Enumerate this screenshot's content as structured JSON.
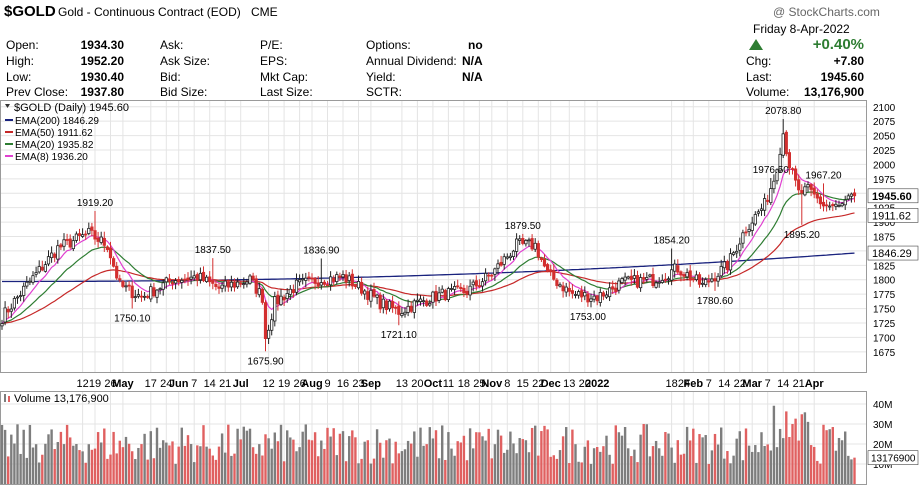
{
  "header": {
    "symbol": "$GOLD",
    "description": "Gold - Continuous Contract (EOD)",
    "exchange": "CME",
    "copyright": "@ StockCharts.com",
    "date": "Friday  8-Apr-2022",
    "change_pct": "+0.40%",
    "quote": {
      "open_label": "Open:",
      "open": "1934.30",
      "high_label": "High:",
      "high": "1952.20",
      "low_label": "Low:",
      "low": "1930.40",
      "prev_label": "Prev Close:",
      "prev": "1937.80",
      "ask_label": "Ask:",
      "ask": "",
      "asksize_label": "Ask Size:",
      "asksize": "",
      "bid_label": "Bid:",
      "bid": "",
      "bidsize_label": "Bid Size:",
      "bidsize": "",
      "pe_label": "P/E:",
      "pe": "",
      "eps_label": "EPS:",
      "eps": "",
      "mktcap_label": "Mkt Cap:",
      "mktcap": "",
      "lastsize_label": "Last Size:",
      "lastsize": "",
      "options_label": "Options:",
      "options": "no",
      "div_label": "Annual Dividend:",
      "div": "N/A",
      "yield_label": "Yield:",
      "yield": "N/A",
      "sctr_label": "SCTR:",
      "sctr": "",
      "chg_label": "Chg:",
      "chg": "+7.80",
      "last_label": "Last:",
      "last": "1945.60",
      "volume_label": "Volume:",
      "volume": "13,176,900"
    }
  },
  "legend": {
    "main": "$GOLD (Daily) 1945.60",
    "emas": [
      {
        "label": "EMA(200) 1846.29",
        "color": "#1a237e"
      },
      {
        "label": "EMA(50) 1911.62",
        "color": "#c62828"
      },
      {
        "label": "EMA(20) 1935.82",
        "color": "#2e7d32"
      },
      {
        "label": "EMA(8) 1936.20",
        "color": "#e040d0"
      }
    ],
    "volume": "Volume 13,176,900"
  },
  "colors": {
    "up": "#222222",
    "down": "#d32f2f",
    "vol_up": "#7d7d7d",
    "vol_down": "#e06060",
    "ema200": "#1a237e",
    "ema50": "#c62828",
    "ema20": "#2e7d32",
    "ema8": "#e040d0",
    "grid": "#e4e4e4"
  },
  "chart_data": {
    "type": "candlestick",
    "title": "$GOLD (Daily) 1945.60",
    "ylim": [
      1640,
      2110
    ],
    "y_ticks": [
      1675,
      1700,
      1725,
      1750,
      1775,
      1800,
      1825,
      1850,
      1875,
      1900,
      1925,
      1950,
      1975,
      2000,
      2025,
      2050,
      2075,
      2100
    ],
    "x_ticks": [
      "12",
      "19",
      "26",
      "May",
      "17",
      "24",
      "Jun",
      "7",
      "14",
      "21",
      "Jul",
      "12",
      "19",
      "26",
      "Aug",
      "9",
      "16",
      "23",
      "Sep",
      "13",
      "20",
      "Oct",
      "11",
      "18",
      "25",
      "Nov",
      "8",
      "15",
      "22",
      "Dec",
      "13",
      "20",
      "2022",
      "18",
      "24",
      "Feb",
      "7",
      "14",
      "22",
      "Mar",
      "7",
      "14",
      "21",
      "Apr"
    ],
    "x_tick_rel": [
      -249,
      -245,
      -240,
      -236,
      -227,
      -222,
      -218,
      -213,
      -208,
      -203,
      -198,
      -189,
      -184,
      -179,
      -175,
      -170,
      -165,
      -160,
      -156,
      -146,
      -141,
      -136,
      -131,
      -126,
      -121,
      -117,
      -112,
      -107,
      -102,
      -98,
      -92,
      -87,
      -83,
      -59,
      -55,
      -52,
      -47,
      -42,
      -37,
      -33,
      -28,
      -23,
      -18,
      -13
    ],
    "anchors": [
      [
        0,
        1735
      ],
      [
        8,
        1790
      ],
      [
        18,
        1855
      ],
      [
        28,
        1880
      ],
      [
        34,
        1860
      ],
      [
        38,
        1790
      ],
      [
        45,
        1770
      ],
      [
        55,
        1800
      ],
      [
        63,
        1805
      ],
      [
        70,
        1785
      ],
      [
        80,
        1800
      ],
      [
        84,
        1770
      ],
      [
        85,
        1700
      ],
      [
        88,
        1760
      ],
      [
        95,
        1790
      ],
      [
        102,
        1800
      ],
      [
        110,
        1805
      ],
      [
        116,
        1785
      ],
      [
        122,
        1760
      ],
      [
        128,
        1745
      ],
      [
        134,
        1760
      ],
      [
        142,
        1775
      ],
      [
        150,
        1780
      ],
      [
        158,
        1810
      ],
      [
        166,
        1860
      ],
      [
        172,
        1860
      ],
      [
        176,
        1810
      ],
      [
        184,
        1775
      ],
      [
        192,
        1770
      ],
      [
        200,
        1795
      ],
      [
        210,
        1800
      ],
      [
        218,
        1820
      ],
      [
        226,
        1790
      ],
      [
        234,
        1825
      ],
      [
        240,
        1890
      ],
      [
        246,
        1930
      ],
      [
        249,
        1975
      ],
      [
        252,
        2055
      ],
      [
        254,
        2000
      ],
      [
        257,
        1950
      ],
      [
        260,
        1955
      ],
      [
        265,
        1930
      ],
      [
        270,
        1925
      ],
      [
        275,
        1945
      ]
    ],
    "ema200_ends": [
      1797,
      1846.29
    ],
    "ema50_last": 1911.62,
    "ema20_last": 1935.82,
    "ema8_last": 1936.2,
    "last_price": 1945.6,
    "volume_ylim": [
      0,
      46000000
    ],
    "volume_ticks": [
      "10M",
      "20M",
      "30M",
      "40M"
    ],
    "volume_last": 13176900,
    "volume_last_label": "13176900",
    "annotations": [
      {
        "label": "1919.20",
        "value": 1919.2,
        "i": 30,
        "pos": "above"
      },
      {
        "label": "1750.10",
        "value": 1750.1,
        "i": 42,
        "pos": "below"
      },
      {
        "label": "1837.50",
        "value": 1837.5,
        "i": 68,
        "pos": "above"
      },
      {
        "label": "1675.90",
        "value": 1675.9,
        "i": 85,
        "pos": "below"
      },
      {
        "label": "1836.90",
        "value": 1836.9,
        "i": 103,
        "pos": "above"
      },
      {
        "label": "1721.10",
        "value": 1721.1,
        "i": 128,
        "pos": "below"
      },
      {
        "label": "1879.50",
        "value": 1879.5,
        "i": 168,
        "pos": "above"
      },
      {
        "label": "1753.00",
        "value": 1753.0,
        "i": 189,
        "pos": "below"
      },
      {
        "label": "1854.20",
        "value": 1854.2,
        "i": 216,
        "pos": "above"
      },
      {
        "label": "1780.60",
        "value": 1780.6,
        "i": 230,
        "pos": "below"
      },
      {
        "label": "1976.50",
        "value": 1976.5,
        "i": 248,
        "pos": "above"
      },
      {
        "label": "2078.80",
        "value": 2078.8,
        "i": 252,
        "pos": "above"
      },
      {
        "label": "1967.20",
        "value": 1967.2,
        "i": 265,
        "pos": "above"
      },
      {
        "label": "1895.20",
        "value": 1895.2,
        "i": 258,
        "pos": "below"
      }
    ]
  }
}
